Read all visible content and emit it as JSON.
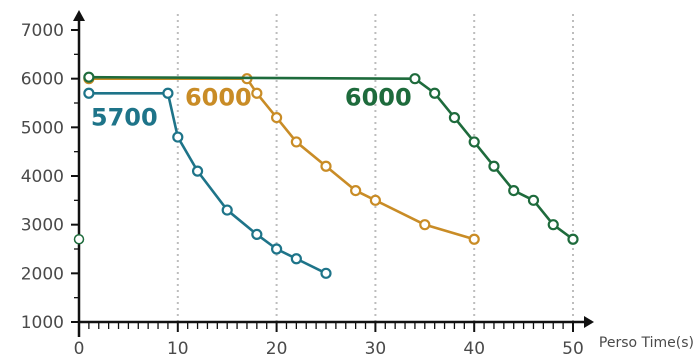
{
  "chart_data": {
    "type": "line",
    "title": "",
    "xlabel": "Perso Time(s)",
    "ylabel": "",
    "xlim": [
      0,
      50
    ],
    "ylim": [
      1000,
      7000
    ],
    "x_ticks": [
      "0",
      "10",
      "20",
      "30",
      "40",
      "50"
    ],
    "y_ticks": [
      "1000",
      "2000",
      "3000",
      "4000",
      "5000",
      "6000",
      "7000"
    ],
    "grid": "vertical dotted lines at x = 10, 20, 30, 40, 50",
    "series": [
      {
        "label": "5700",
        "color": "#1e7489",
        "points": [
          [
            1,
            5700
          ],
          [
            9,
            5700
          ],
          [
            10,
            4800
          ],
          [
            12,
            4100
          ],
          [
            15,
            3300
          ],
          [
            18,
            2800
          ],
          [
            20,
            2500
          ],
          [
            22,
            2300
          ],
          [
            25,
            2000
          ]
        ]
      },
      {
        "label": "6000",
        "color": "#c98c26",
        "points": [
          [
            1,
            6000
          ],
          [
            17,
            6000
          ],
          [
            18,
            5700
          ],
          [
            20,
            5200
          ],
          [
            22,
            4700
          ],
          [
            25,
            4200
          ],
          [
            28,
            3700
          ],
          [
            30,
            3500
          ],
          [
            35,
            3000
          ],
          [
            40,
            2700
          ]
        ]
      },
      {
        "label": "6000",
        "color": "#1e6b3c",
        "points": [
          [
            1,
            6030
          ],
          [
            34,
            6000
          ],
          [
            36,
            5700
          ],
          [
            38,
            5200
          ],
          [
            40,
            4700
          ],
          [
            42,
            4200
          ],
          [
            44,
            3700
          ],
          [
            46,
            3500
          ],
          [
            48,
            3000
          ],
          [
            50,
            2700
          ]
        ]
      }
    ],
    "extra_points": [
      {
        "x": 0,
        "y": 2700,
        "color": "#1e6b3c"
      }
    ]
  }
}
